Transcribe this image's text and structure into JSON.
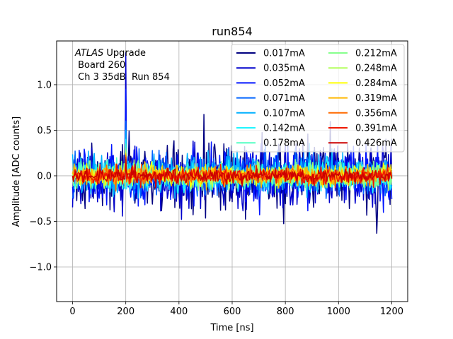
{
  "chart_data": {
    "type": "line",
    "title": "run854",
    "xlabel": "Time [ns]",
    "ylabel": "Amplitude [ADC counts]",
    "xlim": [
      -60,
      1260
    ],
    "ylim": [
      -1.38,
      1.48
    ],
    "xticks": [
      0,
      200,
      400,
      600,
      800,
      1000,
      1200
    ],
    "xtick_labels": [
      "0",
      "200",
      "400",
      "600",
      "800",
      "1000",
      "1200"
    ],
    "yticks": [
      -1.0,
      -0.5,
      0.0,
      0.5,
      1.0
    ],
    "ytick_labels": [
      "−1.0",
      "−0.5",
      "0.0",
      "0.5",
      "1.0"
    ],
    "grid": true,
    "legend_position": "upper-right",
    "legend_columns": 2,
    "annotation": {
      "line1_italic": "ATLAS",
      "line1_rest": " Upgrade",
      "line2": " Board 260",
      "line3": " Ch 3 35dB  Run 854"
    },
    "x_range": [
      0,
      1200
    ],
    "x_step": 3.125,
    "series": [
      {
        "name": "0.017mA",
        "color": "#000080",
        "amplitude": 0.34,
        "peak": 0.85
      },
      {
        "name": "0.035mA",
        "color": "#0000cc",
        "amplitude": 0.3,
        "peak": 1.35
      },
      {
        "name": "0.052mA",
        "color": "#0014ff",
        "amplitude": 0.26,
        "peak": 0.95
      },
      {
        "name": "0.071mA",
        "color": "#0064ff",
        "amplitude": 0.21,
        "peak": 0.6
      },
      {
        "name": "0.107mA",
        "color": "#00b0ff",
        "amplitude": 0.18,
        "peak": 0.5
      },
      {
        "name": "0.142mA",
        "color": "#1ff5ff",
        "amplitude": 0.15,
        "peak": 0.4
      },
      {
        "name": "0.178mA",
        "color": "#53ffc4",
        "amplitude": 0.13,
        "peak": 0.35
      },
      {
        "name": "0.212mA",
        "color": "#86ff8c",
        "amplitude": 0.12,
        "peak": 0.3
      },
      {
        "name": "0.248mA",
        "color": "#b4ff5f",
        "amplitude": 0.11,
        "peak": 0.28
      },
      {
        "name": "0.284mA",
        "color": "#ffff00",
        "amplitude": 0.1,
        "peak": 0.25
      },
      {
        "name": "0.319mA",
        "color": "#ffb800",
        "amplitude": 0.09,
        "peak": 0.24
      },
      {
        "name": "0.356mA",
        "color": "#ff6a00",
        "amplitude": 0.085,
        "peak": 0.22
      },
      {
        "name": "0.391mA",
        "color": "#ee1700",
        "amplitude": 0.075,
        "peak": 0.2
      },
      {
        "name": "0.426mA",
        "color": "#cc0000",
        "amplitude": 0.07,
        "peak": 0.18
      }
    ]
  }
}
